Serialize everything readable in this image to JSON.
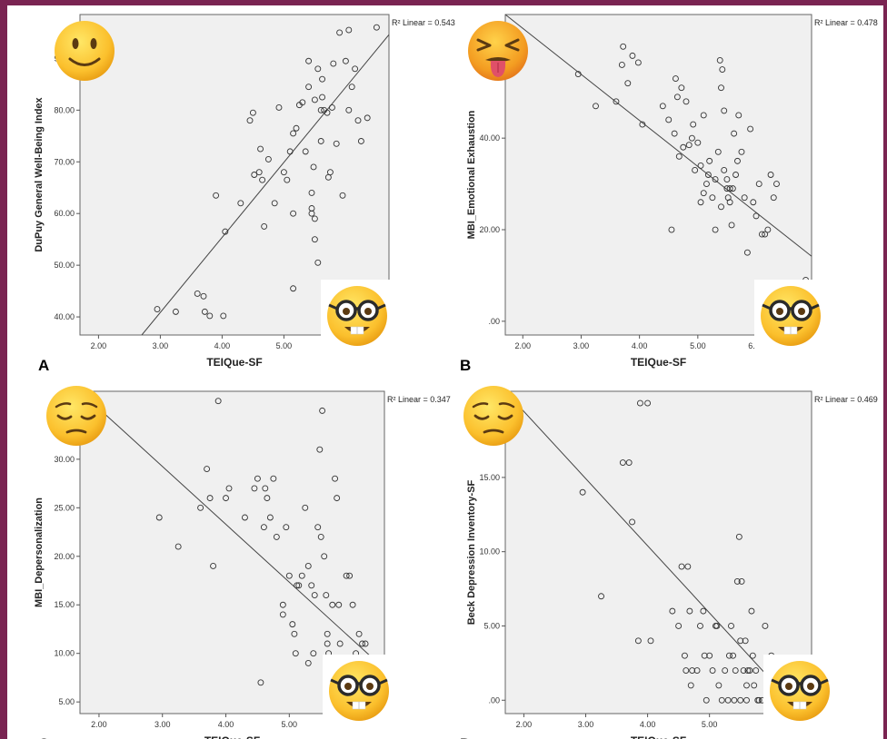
{
  "chart_data": [
    {
      "type": "scatter",
      "panel": "A",
      "r2_label": "R² Linear = 0.543",
      "xlabel": "TEIQue-SF",
      "ylabel": "DuPuy General Well-Being Index",
      "xlim": [
        1.7,
        6.7
      ],
      "ylim": [
        36.5,
        98.5
      ],
      "xticks": [
        2.0,
        3.0,
        4.0,
        5.0,
        6.0
      ],
      "xtick_labels": [
        "2.00",
        "3.00",
        "4.00",
        "5.00",
        "6.00"
      ],
      "yticks": [
        40,
        50,
        60,
        70,
        80,
        90
      ],
      "ytick_labels": [
        "40.00",
        "50.00",
        "60.00",
        "70.00",
        "80.00",
        "90.00"
      ],
      "fit_line": {
        "x": [
          2.7,
          6.7
        ],
        "y": [
          36.5,
          94.6
        ]
      },
      "points": [
        [
          2.95,
          41.5
        ],
        [
          3.25,
          41
        ],
        [
          3.6,
          44.5
        ],
        [
          3.7,
          44
        ],
        [
          3.72,
          41
        ],
        [
          3.8,
          40.2
        ],
        [
          4.02,
          40.2
        ],
        [
          3.9,
          63.5
        ],
        [
          4.05,
          56.5
        ],
        [
          4.3,
          62
        ],
        [
          4.45,
          78
        ],
        [
          4.5,
          79.5
        ],
        [
          4.52,
          67.5
        ],
        [
          4.6,
          68
        ],
        [
          4.62,
          72.5
        ],
        [
          4.65,
          66.5
        ],
        [
          4.68,
          57.5
        ],
        [
          4.75,
          70.5
        ],
        [
          4.85,
          62
        ],
        [
          4.92,
          80.5
        ],
        [
          5.0,
          68
        ],
        [
          5.05,
          66.5
        ],
        [
          5.1,
          72
        ],
        [
          5.15,
          60
        ],
        [
          5.15,
          75.5
        ],
        [
          5.2,
          76.5
        ],
        [
          5.25,
          81
        ],
        [
          5.3,
          81.5
        ],
        [
          5.35,
          72
        ],
        [
          5.4,
          84.5
        ],
        [
          5.4,
          89.5
        ],
        [
          5.45,
          64
        ],
        [
          5.45,
          60
        ],
        [
          5.48,
          69
        ],
        [
          5.5,
          59
        ],
        [
          5.5,
          55
        ],
        [
          5.55,
          50.5
        ],
        [
          5.5,
          82
        ],
        [
          5.55,
          88
        ],
        [
          5.6,
          80
        ],
        [
          5.6,
          74
        ],
        [
          5.62,
          82.5
        ],
        [
          5.62,
          86
        ],
        [
          5.65,
          80
        ],
        [
          5.7,
          79.5
        ],
        [
          5.72,
          67
        ],
        [
          5.75,
          68
        ],
        [
          5.78,
          80.5
        ],
        [
          5.8,
          89
        ],
        [
          5.85,
          73.5
        ],
        [
          5.9,
          95
        ],
        [
          5.95,
          63.5
        ],
        [
          6.0,
          89.5
        ],
        [
          6.05,
          95.5
        ],
        [
          6.05,
          80
        ],
        [
          6.1,
          84.5
        ],
        [
          6.15,
          88
        ],
        [
          6.2,
          78
        ],
        [
          6.25,
          74
        ],
        [
          6.35,
          78.5
        ],
        [
          6.5,
          96
        ],
        [
          5.15,
          45.5
        ],
        [
          5.45,
          61
        ]
      ]
    },
    {
      "type": "scatter",
      "panel": "B",
      "r2_label": "R² Linear = 0.478",
      "xlabel": "TEIQue-SF",
      "ylabel": "MBI_Emotional Exhaustion",
      "xlim": [
        1.7,
        6.95
      ],
      "ylim": [
        -3,
        67
      ],
      "xticks": [
        2.0,
        3.0,
        4.0,
        5.0,
        6.0
      ],
      "xtick_labels": [
        "2.00",
        "3.00",
        "4.00",
        "5.00",
        "6.00"
      ],
      "yticks": [
        0,
        20,
        40
      ],
      "ytick_labels": [
        ".00",
        "20.00",
        "40.00"
      ],
      "fit_line": {
        "x": [
          1.7,
          6.95
        ],
        "y": [
          67,
          14.2
        ]
      },
      "points": [
        [
          2.95,
          54
        ],
        [
          3.25,
          47
        ],
        [
          3.6,
          48
        ],
        [
          3.7,
          56
        ],
        [
          3.72,
          60
        ],
        [
          3.8,
          52
        ],
        [
          3.88,
          58
        ],
        [
          3.98,
          56.5
        ],
        [
          4.05,
          43
        ],
        [
          4.4,
          47
        ],
        [
          4.5,
          44
        ],
        [
          4.55,
          20
        ],
        [
          4.6,
          41
        ],
        [
          4.62,
          53
        ],
        [
          4.65,
          49
        ],
        [
          4.68,
          36
        ],
        [
          4.72,
          51
        ],
        [
          4.75,
          38
        ],
        [
          4.8,
          48
        ],
        [
          4.85,
          38.5
        ],
        [
          4.9,
          40
        ],
        [
          4.92,
          43
        ],
        [
          4.95,
          33
        ],
        [
          5.0,
          39
        ],
        [
          5.05,
          26
        ],
        [
          5.05,
          34
        ],
        [
          5.1,
          28
        ],
        [
          5.1,
          45
        ],
        [
          5.15,
          30
        ],
        [
          5.18,
          32
        ],
        [
          5.2,
          35
        ],
        [
          5.25,
          27
        ],
        [
          5.3,
          20
        ],
        [
          5.3,
          31
        ],
        [
          5.35,
          37
        ],
        [
          5.38,
          57
        ],
        [
          5.4,
          51
        ],
        [
          5.42,
          55
        ],
        [
          5.45,
          33
        ],
        [
          5.45,
          46
        ],
        [
          5.5,
          29
        ],
        [
          5.5,
          31
        ],
        [
          5.52,
          27
        ],
        [
          5.55,
          26
        ],
        [
          5.58,
          21
        ],
        [
          5.6,
          29
        ],
        [
          5.62,
          41
        ],
        [
          5.65,
          32
        ],
        [
          5.68,
          35
        ],
        [
          5.7,
          45
        ],
        [
          5.75,
          37
        ],
        [
          5.8,
          27
        ],
        [
          5.85,
          15
        ],
        [
          5.9,
          42
        ],
        [
          5.95,
          26
        ],
        [
          6.0,
          23
        ],
        [
          6.05,
          30
        ],
        [
          6.1,
          19
        ],
        [
          6.15,
          19
        ],
        [
          6.2,
          20
        ],
        [
          6.25,
          32
        ],
        [
          6.3,
          27
        ],
        [
          6.35,
          30
        ],
        [
          6.85,
          9
        ],
        [
          5.4,
          25
        ],
        [
          5.55,
          29
        ]
      ]
    },
    {
      "type": "scatter",
      "panel": "C",
      "r2_label": "R² Linear = 0.347",
      "xlabel": "TEIQue-SF",
      "ylabel": "MBI_Depersonalization",
      "xlim": [
        1.7,
        6.5
      ],
      "ylim": [
        3.8,
        37
      ],
      "xticks": [
        2.0,
        3.0,
        4.0,
        5.0,
        6.0
      ],
      "xtick_labels": [
        "2.00",
        "3.00",
        "4.00",
        "5.00",
        "6.00"
      ],
      "yticks": [
        5,
        10,
        15,
        20,
        25,
        30
      ],
      "ytick_labels": [
        "5.00",
        "10.00",
        "15.00",
        "20.00",
        "25.00",
        "30.00"
      ],
      "fit_line": {
        "x": [
          1.7,
          6.5
        ],
        "y": [
          37,
          8.4
        ]
      },
      "points": [
        [
          2.95,
          24
        ],
        [
          3.25,
          21
        ],
        [
          3.6,
          25
        ],
        [
          3.7,
          29
        ],
        [
          3.75,
          26
        ],
        [
          3.8,
          19
        ],
        [
          3.88,
          36
        ],
        [
          4.0,
          26
        ],
        [
          4.05,
          27
        ],
        [
          4.3,
          24
        ],
        [
          4.45,
          27
        ],
        [
          4.5,
          28
        ],
        [
          4.55,
          7
        ],
        [
          4.6,
          23
        ],
        [
          4.62,
          27
        ],
        [
          4.65,
          26
        ],
        [
          4.7,
          24
        ],
        [
          4.75,
          28
        ],
        [
          4.8,
          22
        ],
        [
          4.9,
          15
        ],
        [
          4.9,
          14
        ],
        [
          4.95,
          23
        ],
        [
          5.0,
          18
        ],
        [
          5.05,
          13
        ],
        [
          5.08,
          12
        ],
        [
          5.1,
          10
        ],
        [
          5.12,
          17
        ],
        [
          5.15,
          17
        ],
        [
          5.2,
          18
        ],
        [
          5.25,
          25
        ],
        [
          5.3,
          19
        ],
        [
          5.3,
          9
        ],
        [
          5.35,
          17
        ],
        [
          5.38,
          10
        ],
        [
          5.4,
          16
        ],
        [
          5.45,
          23
        ],
        [
          5.48,
          31
        ],
        [
          5.5,
          22
        ],
        [
          5.52,
          35
        ],
        [
          5.55,
          20
        ],
        [
          5.58,
          16
        ],
        [
          5.6,
          12
        ],
        [
          5.62,
          10
        ],
        [
          5.65,
          9
        ],
        [
          5.68,
          15
        ],
        [
          5.7,
          9
        ],
        [
          5.72,
          28
        ],
        [
          5.75,
          26
        ],
        [
          5.78,
          15
        ],
        [
          5.8,
          11
        ],
        [
          5.85,
          8
        ],
        [
          5.9,
          18
        ],
        [
          5.95,
          18
        ],
        [
          6.0,
          15
        ],
        [
          6.05,
          10
        ],
        [
          6.1,
          12
        ],
        [
          6.15,
          11
        ],
        [
          6.2,
          11
        ],
        [
          6.25,
          9
        ],
        [
          6.35,
          8
        ],
        [
          6.45,
          8
        ],
        [
          5.6,
          11
        ]
      ]
    },
    {
      "type": "scatter",
      "panel": "D",
      "r2_label": "R² Linear = 0.469",
      "xlabel": "TEIQue-SF",
      "ylabel": "Beck Depression Inventory-SF",
      "xlim": [
        1.7,
        6.65
      ],
      "ylim": [
        -0.9,
        20.8
      ],
      "xticks": [
        2.0,
        3.0,
        4.0,
        5.0,
        6.0
      ],
      "xtick_labels": [
        "2.00",
        "3.00",
        "4.00",
        "5.00",
        "6.00"
      ],
      "yticks": [
        0,
        5,
        10,
        15
      ],
      "ytick_labels": [
        ".00",
        "5.00",
        "10.00",
        "15.00"
      ],
      "fit_line": {
        "x": [
          1.7,
          6.3
        ],
        "y": [
          20.8,
          0
        ]
      },
      "points": [
        [
          2.95,
          14
        ],
        [
          3.25,
          7
        ],
        [
          3.6,
          16
        ],
        [
          3.7,
          16
        ],
        [
          3.75,
          12
        ],
        [
          3.85,
          4
        ],
        [
          3.88,
          20
        ],
        [
          4.0,
          20
        ],
        [
          4.05,
          4
        ],
        [
          4.4,
          6
        ],
        [
          4.5,
          5
        ],
        [
          4.55,
          9
        ],
        [
          4.6,
          3
        ],
        [
          4.62,
          2
        ],
        [
          4.65,
          9
        ],
        [
          4.68,
          6
        ],
        [
          4.7,
          1
        ],
        [
          4.72,
          2
        ],
        [
          4.8,
          2
        ],
        [
          4.85,
          5
        ],
        [
          4.9,
          6
        ],
        [
          4.92,
          3
        ],
        [
          4.95,
          0
        ],
        [
          5.0,
          3
        ],
        [
          5.05,
          2
        ],
        [
          5.1,
          5
        ],
        [
          5.12,
          5
        ],
        [
          5.15,
          1
        ],
        [
          5.2,
          0
        ],
        [
          5.25,
          2
        ],
        [
          5.3,
          0
        ],
        [
          5.32,
          3
        ],
        [
          5.35,
          5
        ],
        [
          5.38,
          3
        ],
        [
          5.4,
          0
        ],
        [
          5.42,
          2
        ],
        [
          5.45,
          8
        ],
        [
          5.48,
          11
        ],
        [
          5.5,
          4
        ],
        [
          5.52,
          8
        ],
        [
          5.55,
          2
        ],
        [
          5.58,
          4
        ],
        [
          5.6,
          0
        ],
        [
          5.62,
          2
        ],
        [
          5.65,
          2
        ],
        [
          5.68,
          6
        ],
        [
          5.7,
          3
        ],
        [
          5.72,
          1
        ],
        [
          5.75,
          2
        ],
        [
          5.78,
          0
        ],
        [
          5.8,
          0
        ],
        [
          5.85,
          0
        ],
        [
          5.9,
          5
        ],
        [
          5.95,
          2
        ],
        [
          6.0,
          3
        ],
        [
          6.05,
          0
        ],
        [
          6.1,
          0
        ],
        [
          6.15,
          0
        ],
        [
          6.2,
          0
        ],
        [
          6.25,
          0
        ],
        [
          6.3,
          0
        ],
        [
          6.5,
          2
        ],
        [
          5.5,
          0
        ],
        [
          5.6,
          1
        ]
      ]
    }
  ],
  "emojis": [
    "slightly-smiling-face",
    "face-with-tongue-tired",
    "pensive-face",
    "pensive-face",
    "nerd-face",
    "nerd-face",
    "nerd-face",
    "nerd-face"
  ]
}
